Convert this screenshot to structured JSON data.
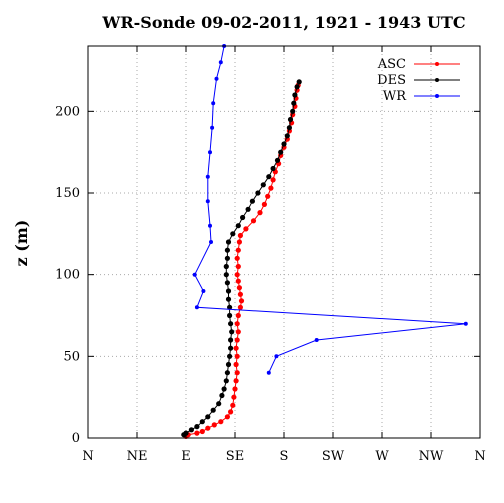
{
  "chart_data": {
    "type": "scatter",
    "title": "WR-Sonde 09-02-2011, 1921 - 1943 UTC",
    "ylabel": "z (m)",
    "xlabel": "",
    "x_tick_labels": [
      "N",
      "NE",
      "E",
      "SE",
      "S",
      "SW",
      "W",
      "NW",
      "N"
    ],
    "x_tick_values": [
      0,
      45,
      90,
      135,
      180,
      225,
      270,
      315,
      360
    ],
    "xlim": [
      0,
      360
    ],
    "y_ticks": [
      0,
      50,
      100,
      150,
      200
    ],
    "ylim": [
      0,
      240
    ],
    "grid": true,
    "legend_position": "top-right",
    "series": [
      {
        "name": "ASC",
        "color": "#ff0000",
        "style": "line-points",
        "points": [
          [
            90,
            1
          ],
          [
            92,
            2
          ],
          [
            100,
            3
          ],
          [
            105,
            4
          ],
          [
            110,
            6
          ],
          [
            116,
            8
          ],
          [
            122,
            10
          ],
          [
            128,
            13
          ],
          [
            131,
            16
          ],
          [
            133,
            20
          ],
          [
            134,
            25
          ],
          [
            135,
            30
          ],
          [
            136,
            35
          ],
          [
            137,
            40
          ],
          [
            136,
            45
          ],
          [
            137,
            50
          ],
          [
            136,
            55
          ],
          [
            137,
            60
          ],
          [
            138,
            65
          ],
          [
            137,
            70
          ],
          [
            138,
            75
          ],
          [
            140,
            80
          ],
          [
            141,
            84
          ],
          [
            140,
            88
          ],
          [
            139,
            92
          ],
          [
            138,
            96
          ],
          [
            137,
            100
          ],
          [
            138,
            105
          ],
          [
            137,
            110
          ],
          [
            138,
            115
          ],
          [
            139,
            120
          ],
          [
            140,
            124
          ],
          [
            145,
            128
          ],
          [
            152,
            133
          ],
          [
            158,
            138
          ],
          [
            162,
            143
          ],
          [
            165,
            148
          ],
          [
            168,
            153
          ],
          [
            170,
            158
          ],
          [
            172,
            163
          ],
          [
            175,
            168
          ],
          [
            177,
            173
          ],
          [
            180,
            178
          ],
          [
            183,
            183
          ],
          [
            185,
            188
          ],
          [
            187,
            193
          ],
          [
            188,
            198
          ],
          [
            190,
            203
          ],
          [
            191,
            208
          ],
          [
            192,
            213
          ],
          [
            193,
            216
          ]
        ]
      },
      {
        "name": "DES",
        "color": "#000000",
        "style": "line-points",
        "points": [
          [
            88,
            2
          ],
          [
            90,
            3
          ],
          [
            95,
            5
          ],
          [
            100,
            7
          ],
          [
            105,
            10
          ],
          [
            110,
            13
          ],
          [
            115,
            17
          ],
          [
            120,
            21
          ],
          [
            123,
            26
          ],
          [
            125,
            30
          ],
          [
            127,
            35
          ],
          [
            128,
            40
          ],
          [
            129,
            45
          ],
          [
            130,
            50
          ],
          [
            131,
            55
          ],
          [
            131,
            60
          ],
          [
            132,
            65
          ],
          [
            131,
            70
          ],
          [
            130,
            75
          ],
          [
            130,
            80
          ],
          [
            129,
            85
          ],
          [
            129,
            90
          ],
          [
            128,
            95
          ],
          [
            127,
            100
          ],
          [
            127,
            105
          ],
          [
            128,
            110
          ],
          [
            128,
            115
          ],
          [
            129,
            120
          ],
          [
            133,
            125
          ],
          [
            138,
            130
          ],
          [
            142,
            135
          ],
          [
            147,
            140
          ],
          [
            151,
            145
          ],
          [
            156,
            150
          ],
          [
            161,
            155
          ],
          [
            166,
            160
          ],
          [
            170,
            165
          ],
          [
            174,
            170
          ],
          [
            177,
            175
          ],
          [
            180,
            180
          ],
          [
            183,
            185
          ],
          [
            185,
            190
          ],
          [
            186,
            195
          ],
          [
            188,
            200
          ],
          [
            189,
            205
          ],
          [
            190,
            210
          ],
          [
            192,
            215
          ],
          [
            194,
            218
          ]
        ]
      },
      {
        "name": "WR",
        "color": "#0000ff",
        "style": "line-points",
        "points": [
          [
            166,
            40
          ],
          [
            173,
            50
          ],
          [
            210,
            60
          ],
          [
            347,
            70
          ],
          [
            100,
            80
          ],
          [
            106,
            90
          ],
          [
            98,
            100
          ],
          [
            113,
            120
          ],
          [
            112,
            130
          ],
          [
            110,
            145
          ],
          [
            110,
            160
          ],
          [
            112,
            175
          ],
          [
            114,
            190
          ],
          [
            115,
            205
          ],
          [
            118,
            220
          ],
          [
            122,
            230
          ],
          [
            125,
            240
          ]
        ]
      }
    ]
  }
}
